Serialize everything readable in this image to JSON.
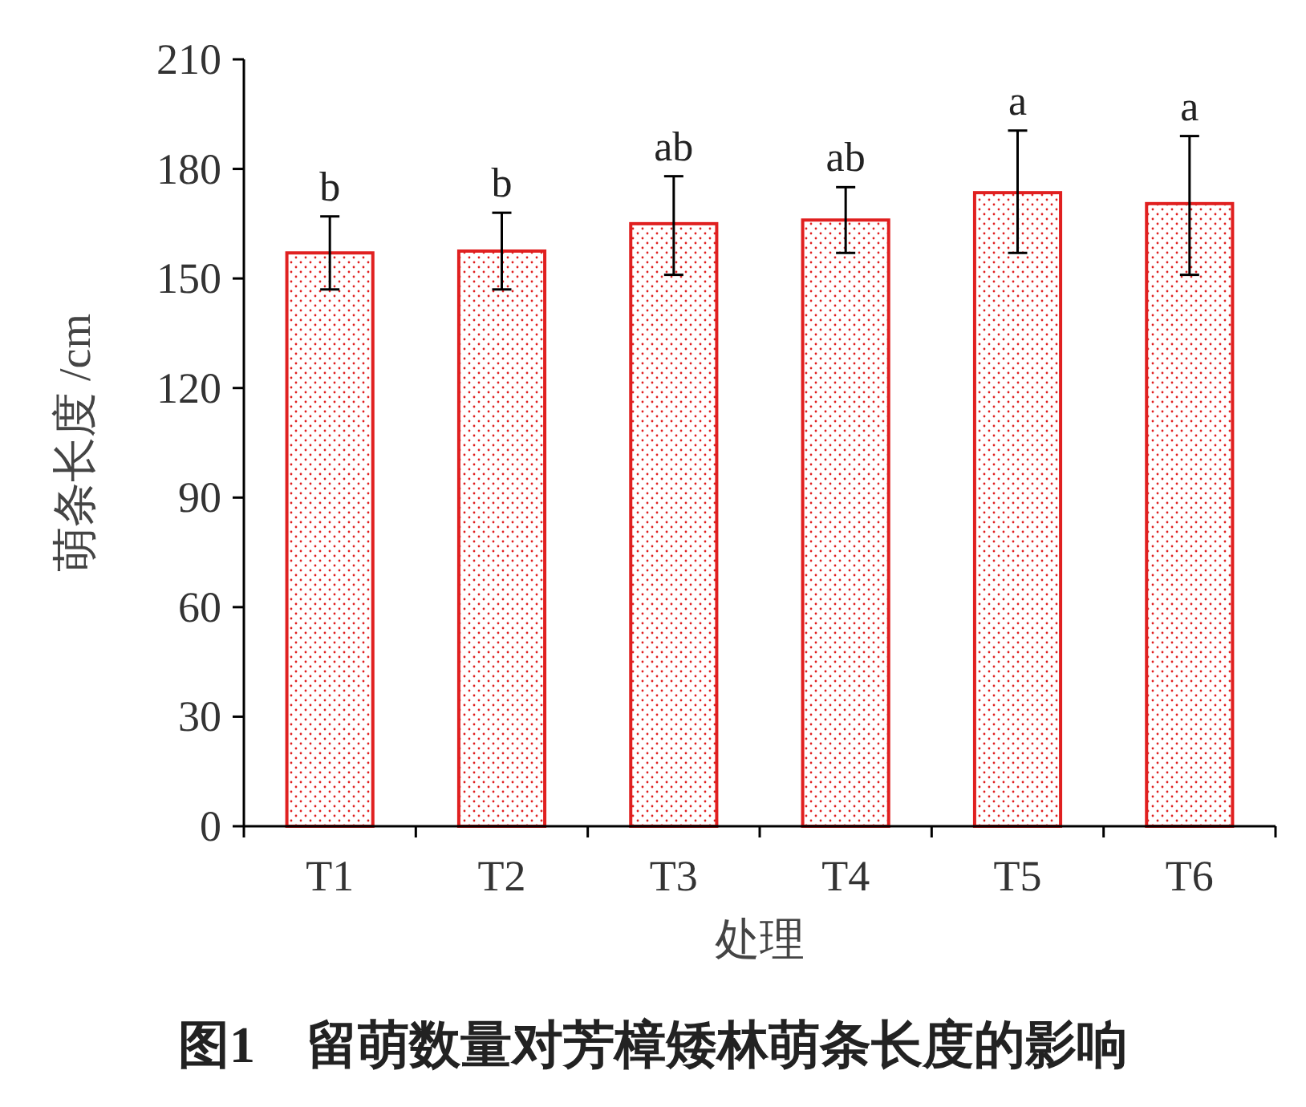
{
  "chart_data": {
    "type": "bar",
    "title": "图1　留萌数量对芳樟矮林萌条长度的影响",
    "xlabel": "处理",
    "ylabel": "萌条长度 /cm",
    "categories": [
      "T1",
      "T2",
      "T3",
      "T4",
      "T5",
      "T6"
    ],
    "values": [
      157,
      157.5,
      165,
      166,
      173.5,
      170.5
    ],
    "errors": [
      [
        147,
        167
      ],
      [
        147,
        168
      ],
      [
        151,
        178
      ],
      [
        157,
        175
      ],
      [
        157,
        190.5
      ],
      [
        151,
        189
      ]
    ],
    "color": "#e02020",
    "ylim": [
      0,
      210
    ],
    "yticks": [
      0,
      30,
      60,
      90,
      120,
      150,
      180,
      210
    ],
    "annotations": [
      {
        "text": "b",
        "x": "T1",
        "y": 167
      },
      {
        "text": "b",
        "x": "T2",
        "y": 168
      },
      {
        "text": "ab",
        "x": "T3",
        "y": 178
      },
      {
        "text": "ab",
        "x": "T4",
        "y": 175
      },
      {
        "text": "a",
        "x": "T5",
        "y": 190.5
      },
      {
        "text": "a",
        "x": "T6",
        "y": 189
      }
    ]
  }
}
